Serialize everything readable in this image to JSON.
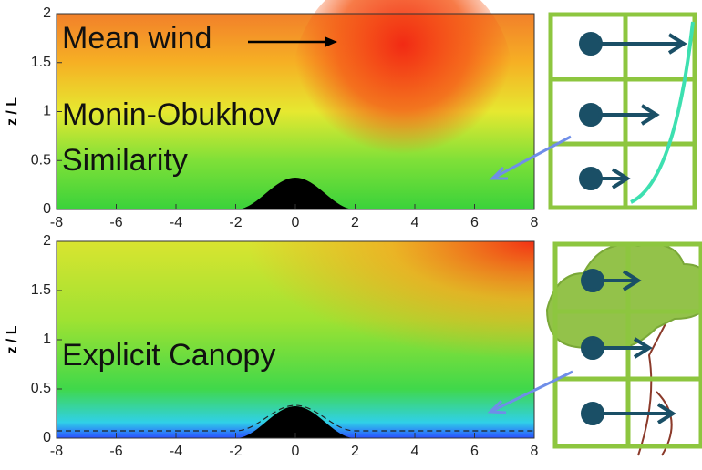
{
  "chart_data": [
    {
      "type": "heatmap",
      "ylabel": "z / L",
      "xlim": [
        -8,
        8
      ],
      "ylim": [
        0,
        2
      ],
      "xticks": [
        -8,
        -6,
        -4,
        -2,
        0,
        2,
        4,
        6,
        8
      ],
      "yticks": [
        0,
        0.5,
        1,
        1.5,
        2
      ],
      "annotations": [
        "Mean wind",
        "Monin-Obukhov",
        "Similarity"
      ]
    },
    {
      "type": "heatmap",
      "ylabel": "z / L",
      "xlim": [
        -8,
        8
      ],
      "ylim": [
        0,
        2
      ],
      "xticks": [
        -8,
        -6,
        -4,
        -2,
        0,
        2,
        4,
        6,
        8
      ],
      "yticks": [
        0,
        0.5,
        1,
        1.5,
        2
      ],
      "annotations": [
        "Explicit Canopy"
      ]
    }
  ]
}
